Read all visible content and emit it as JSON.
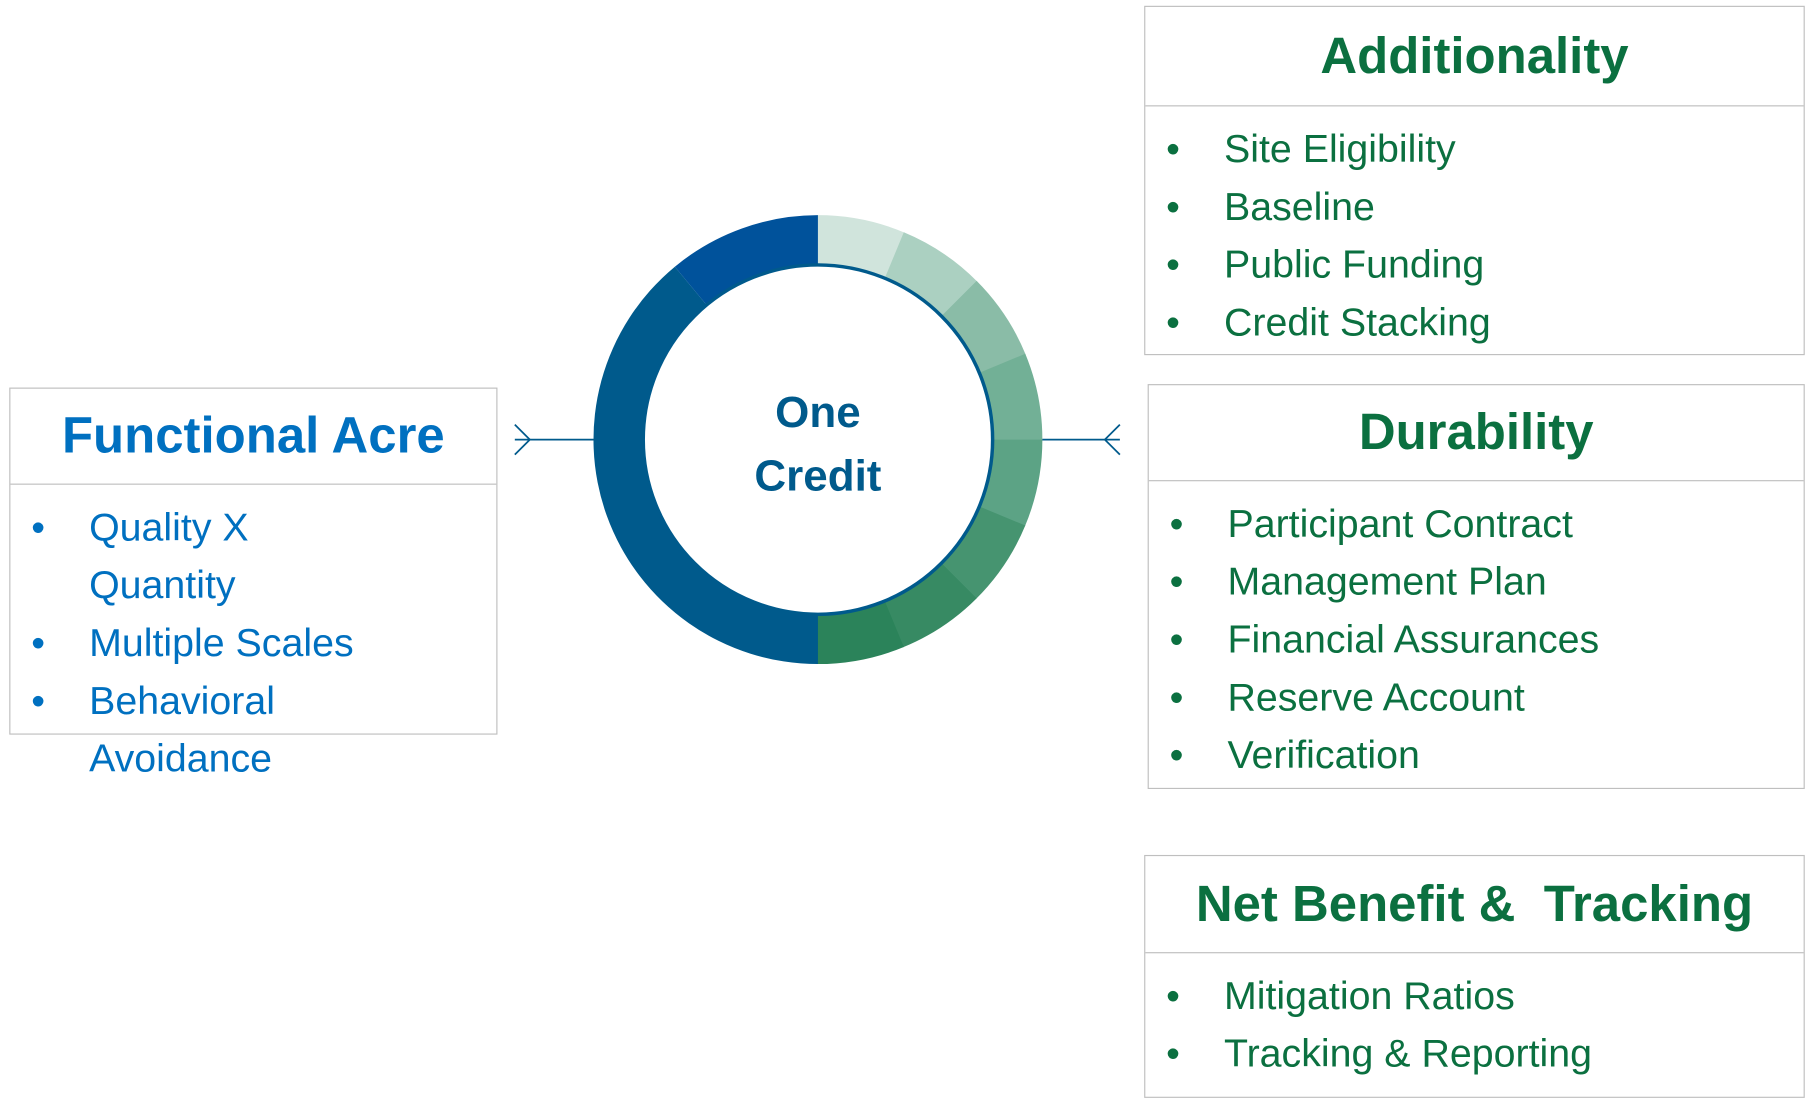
{
  "center": {
    "lines": [
      "One",
      "Credit"
    ]
  },
  "boxes": [
    {
      "title": "Functional Acre",
      "items": [
        "Quality X Quantity",
        "Multiple Scales",
        "Behavioral Avoidance"
      ]
    },
    {
      "title": "Additionality",
      "items": [
        "Site Eligibility",
        "Baseline",
        "Public Funding",
        "Credit Stacking"
      ]
    },
    {
      "title": "Durability",
      "items": [
        "Participant Contract",
        "Management Plan",
        "Financial Assurances",
        "Reserve Account",
        "Verification"
      ]
    },
    {
      "title": "Net Benefit &  Tracking",
      "items": [
        "Mitigation Ratios",
        "Tracking & Reporting"
      ]
    }
  ]
}
